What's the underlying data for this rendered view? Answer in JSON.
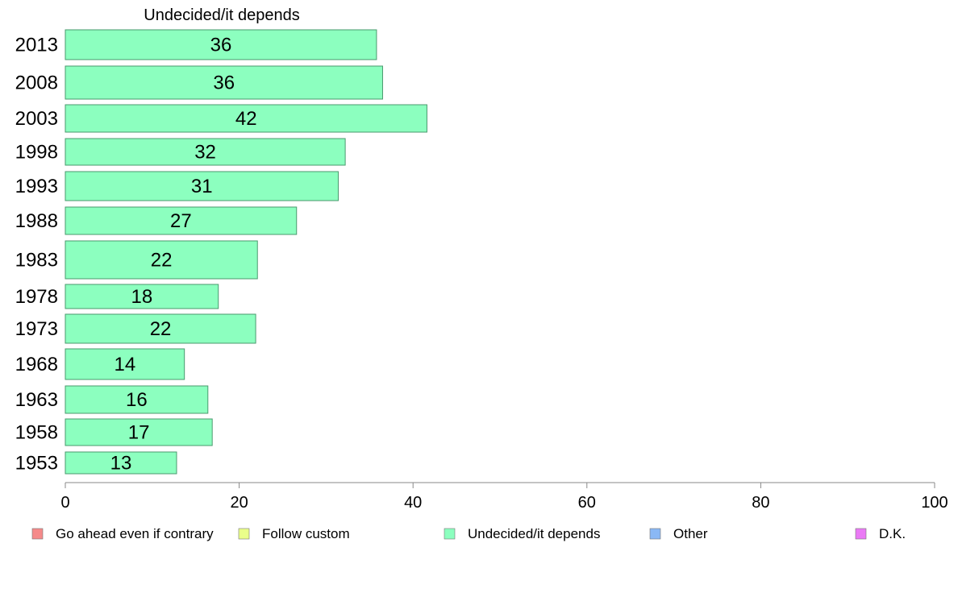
{
  "chart_data": {
    "type": "bar",
    "orientation": "horizontal",
    "title": "Undecided/it depends",
    "categories": [
      "2013",
      "2008",
      "2003",
      "1998",
      "1993",
      "1988",
      "1983",
      "1978",
      "1973",
      "1968",
      "1963",
      "1958",
      "1953"
    ],
    "series": [
      {
        "name": "Undecided/it depends",
        "values": [
          36,
          36,
          42,
          32,
          31,
          27,
          22,
          18,
          22,
          14,
          16,
          17,
          13
        ]
      }
    ],
    "bar_lengths": [
      35.8,
      36.5,
      41.6,
      32.2,
      31.4,
      26.6,
      22.1,
      17.6,
      21.9,
      13.7,
      16.4,
      16.9,
      12.8
    ],
    "xlim": [
      0,
      100
    ],
    "xticks": [
      "0",
      "20",
      "40",
      "60",
      "80",
      "100"
    ],
    "xlabel": "",
    "ylabel": "",
    "grid": false,
    "bar_color": "#8cffbf",
    "bar_stroke": "#4a9a6e",
    "legend": {
      "placement": "bottom",
      "items": [
        {
          "label": "Go ahead even if contrary",
          "color": "#f58a8a"
        },
        {
          "label": "Follow custom",
          "color": "#eaff8a"
        },
        {
          "label": "Undecided/it depends",
          "color": "#8cffbf"
        },
        {
          "label": "Other",
          "color": "#8ab8f5"
        },
        {
          "label": "D.K.",
          "color": "#ea7af5"
        }
      ]
    }
  }
}
